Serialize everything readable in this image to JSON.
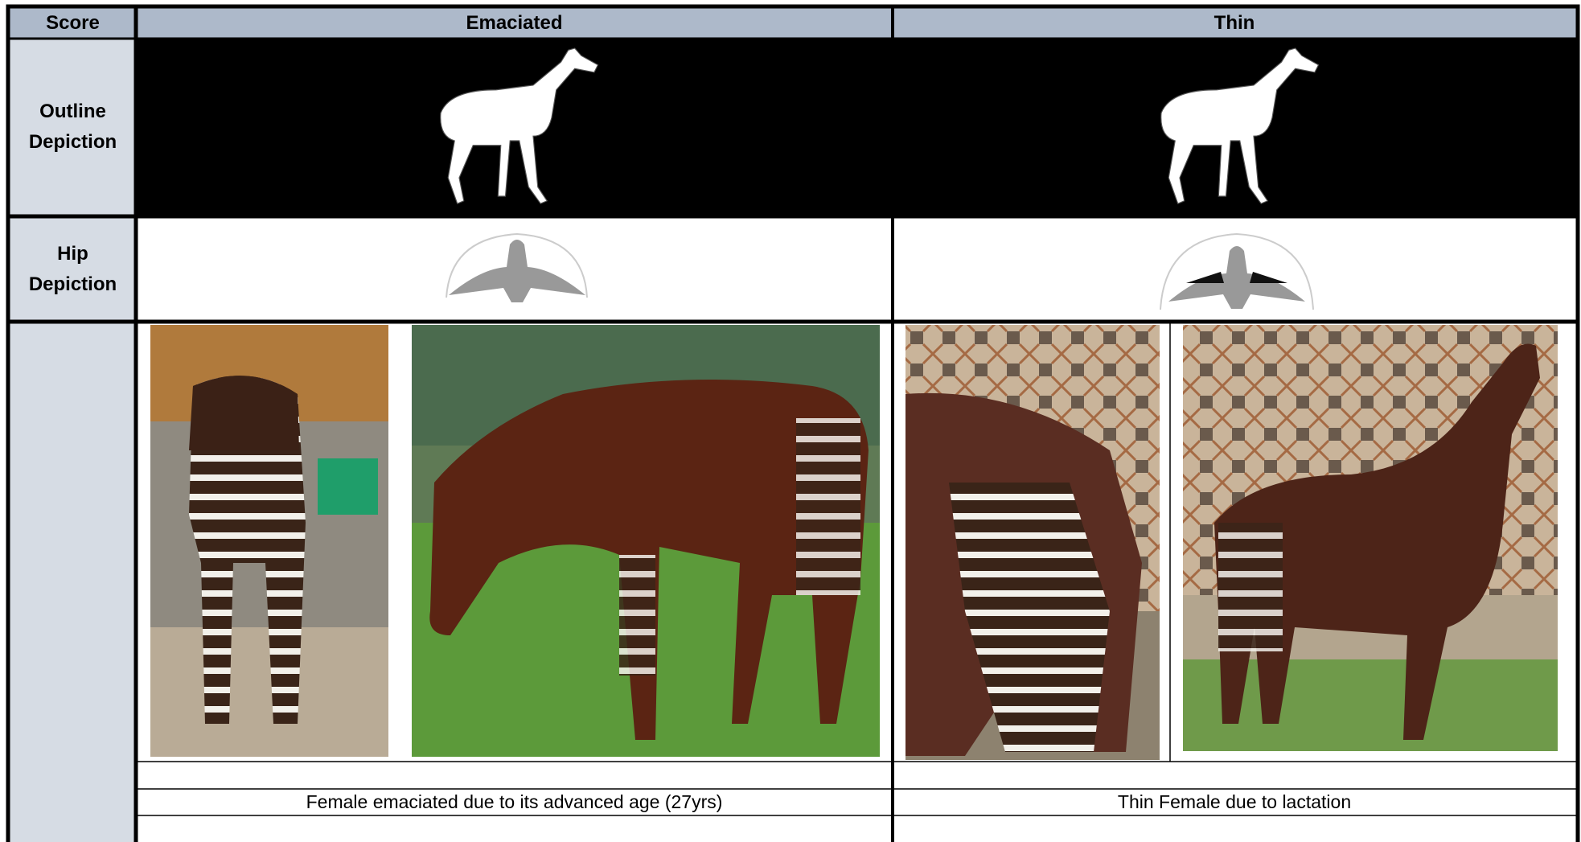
{
  "header": {
    "score": "Score",
    "columns": [
      "Emaciated",
      "Thin"
    ]
  },
  "rows": [
    {
      "label": "Outline Depiction"
    },
    {
      "label": "Hip Depiction"
    }
  ],
  "captions": [
    "Female emaciated due to its advanced age (27yrs)",
    "Thin Female due to lactation"
  ]
}
